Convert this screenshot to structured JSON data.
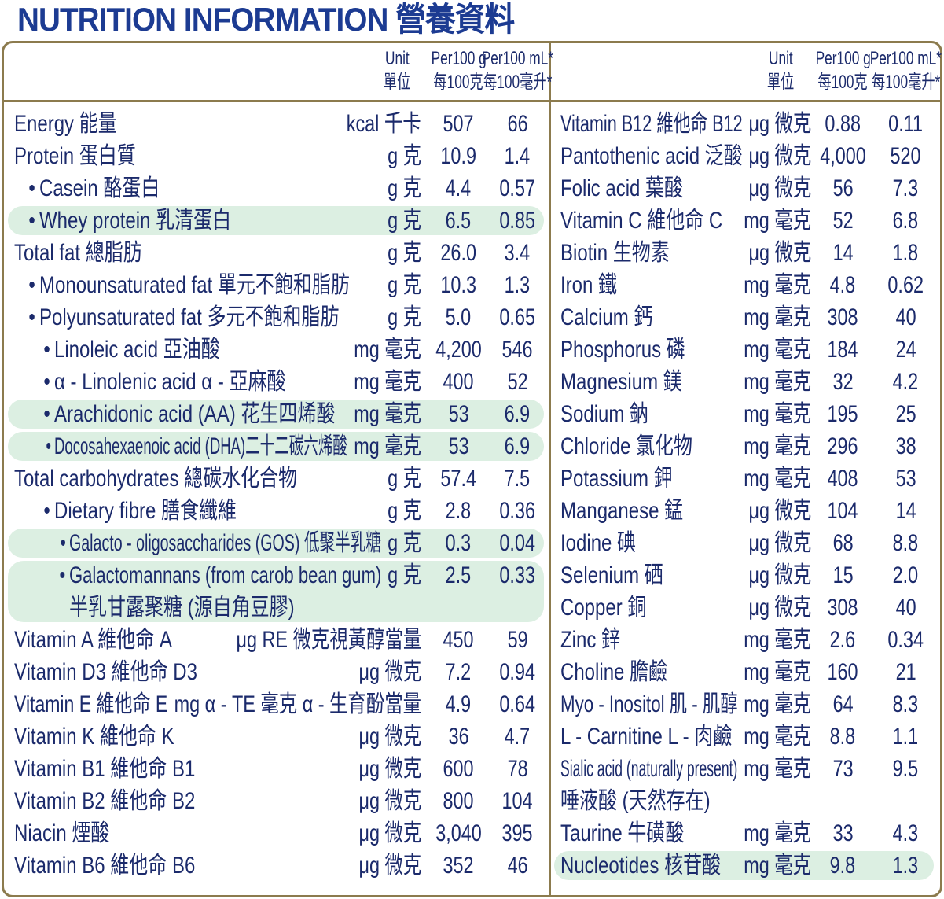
{
  "title": "NUTRITION INFORMATION 營養資料",
  "columns": [
    {
      "header": {
        "unit": [
          "Unit",
          "單位"
        ],
        "per100g": [
          "Per100 g",
          "每100克"
        ],
        "per100ml": [
          "Per100 mL*",
          "每100毫升*"
        ]
      },
      "rows": [
        {
          "name": [
            "Energy 能量"
          ],
          "unit": "kcal 千卡",
          "per100g": "507",
          "per100ml": "66"
        },
        {
          "name": [
            "Protein 蛋白質"
          ],
          "unit": "g 克",
          "per100g": "10.9",
          "per100ml": "1.4"
        },
        {
          "name": [
            "Casein 酪蛋白"
          ],
          "unit": "g 克",
          "per100g": "4.4",
          "per100ml": "0.57",
          "level": 1
        },
        {
          "name": [
            "Whey protein 乳清蛋白"
          ],
          "unit": "g 克",
          "per100g": "6.5",
          "per100ml": "0.85",
          "level": 1,
          "highlight": true
        },
        {
          "name": [
            "Total fat 總脂肪"
          ],
          "unit": "g 克",
          "per100g": "26.0",
          "per100ml": "3.4"
        },
        {
          "name": [
            "Monounsaturated fat 單元不飽和脂肪"
          ],
          "unit": "g 克",
          "per100g": "10.3",
          "per100ml": "1.3",
          "level": 1
        },
        {
          "name": [
            "Polyunsaturated fat 多元不飽和脂肪"
          ],
          "unit": "g 克",
          "per100g": "5.0",
          "per100ml": "0.65",
          "level": 1
        },
        {
          "name": [
            "Linoleic acid 亞油酸"
          ],
          "unit": "mg 毫克",
          "per100g": "4,200",
          "per100ml": "546",
          "level": 2
        },
        {
          "name": [
            "α - Linolenic acid α - 亞麻酸"
          ],
          "unit": "mg 毫克",
          "per100g": "400",
          "per100ml": "52",
          "level": 2
        },
        {
          "name": [
            "Arachidonic acid (AA) 花生四烯酸"
          ],
          "unit": "mg 毫克",
          "per100g": "53",
          "per100ml": "6.9",
          "level": 2,
          "highlight": true
        },
        {
          "name": [
            "Docosahexaenoic acid (DHA)二十二碳六烯酸"
          ],
          "unit": "mg 毫克",
          "per100g": "53",
          "per100ml": "6.9",
          "level": 2,
          "highlight": true
        },
        {
          "name": [
            "Total carbohydrates 總碳水化合物"
          ],
          "unit": "g 克",
          "per100g": "57.4",
          "per100ml": "7.5"
        },
        {
          "name": [
            "Dietary fibre 膳食纖維"
          ],
          "unit": "g 克",
          "per100g": "2.8",
          "per100ml": "0.36",
          "level": 2
        },
        {
          "name": [
            "Galacto - oligosaccharides (GOS) 低聚半乳糖"
          ],
          "unit": "g 克",
          "per100g": "0.3",
          "per100ml": "0.04",
          "level": 3,
          "highlight": true
        },
        {
          "name": [
            "Galactomannans (from carob bean gum)",
            "半乳甘露聚糖 (源自角豆膠)"
          ],
          "unit": "g 克",
          "per100g": "2.5",
          "per100ml": "0.33",
          "level": 3,
          "highlight": true
        },
        {
          "name": [
            "Vitamin A 維他命 A"
          ],
          "unit": "μg RE 微克視黃醇當量",
          "per100g": "450",
          "per100ml": "59"
        },
        {
          "name": [
            "Vitamin D3 維他命 D3"
          ],
          "unit": "μg 微克",
          "per100g": "7.2",
          "per100ml": "0.94"
        },
        {
          "name": [
            "Vitamin E 維他命 E"
          ],
          "unit": "mg α - TE 毫克 α - 生育酚當量",
          "per100g": "4.9",
          "per100ml": "0.64"
        },
        {
          "name": [
            "Vitamin K 維他命 K"
          ],
          "unit": "μg 微克",
          "per100g": "36",
          "per100ml": "4.7"
        },
        {
          "name": [
            "Vitamin B1 維他命 B1"
          ],
          "unit": "μg 微克",
          "per100g": "600",
          "per100ml": "78"
        },
        {
          "name": [
            "Vitamin B2 維他命 B2"
          ],
          "unit": "μg 微克",
          "per100g": "800",
          "per100ml": "104"
        },
        {
          "name": [
            "Niacin 煙酸"
          ],
          "unit": "μg 微克",
          "per100g": "3,040",
          "per100ml": "395"
        },
        {
          "name": [
            "Vitamin B6 維他命 B6"
          ],
          "unit": "μg 微克",
          "per100g": "352",
          "per100ml": "46"
        }
      ]
    },
    {
      "header": {
        "unit": [
          "Unit",
          "單位"
        ],
        "per100g": [
          "Per100 g",
          "每100克"
        ],
        "per100ml": [
          "Per100 mL*",
          "每100毫升*"
        ]
      },
      "rows": [
        {
          "name": [
            "Vitamin B12 維他命 B12"
          ],
          "unit": "μg 微克",
          "per100g": "0.88",
          "per100ml": "0.11"
        },
        {
          "name": [
            "Pantothenic acid 泛酸"
          ],
          "unit": "μg 微克",
          "per100g": "4,000",
          "per100ml": "520"
        },
        {
          "name": [
            "Folic acid 葉酸"
          ],
          "unit": "μg 微克",
          "per100g": "56",
          "per100ml": "7.3"
        },
        {
          "name": [
            "Vitamin C 維他命 C"
          ],
          "unit": "mg 毫克",
          "per100g": "52",
          "per100ml": "6.8"
        },
        {
          "name": [
            "Biotin 生物素"
          ],
          "unit": "μg 微克",
          "per100g": "14",
          "per100ml": "1.8"
        },
        {
          "name": [
            "Iron 鐵"
          ],
          "unit": "mg 毫克",
          "per100g": "4.8",
          "per100ml": "0.62"
        },
        {
          "name": [
            "Calcium 鈣"
          ],
          "unit": "mg 毫克",
          "per100g": "308",
          "per100ml": "40"
        },
        {
          "name": [
            "Phosphorus 磷"
          ],
          "unit": "mg 毫克",
          "per100g": "184",
          "per100ml": "24"
        },
        {
          "name": [
            "Magnesium 鎂"
          ],
          "unit": "mg 毫克",
          "per100g": "32",
          "per100ml": "4.2"
        },
        {
          "name": [
            "Sodium 鈉"
          ],
          "unit": "mg 毫克",
          "per100g": "195",
          "per100ml": "25"
        },
        {
          "name": [
            "Chloride 氯化物"
          ],
          "unit": "mg 毫克",
          "per100g": "296",
          "per100ml": "38"
        },
        {
          "name": [
            "Potassium 鉀"
          ],
          "unit": "mg 毫克",
          "per100g": "408",
          "per100ml": "53"
        },
        {
          "name": [
            "Manganese 錳"
          ],
          "unit": "μg 微克",
          "per100g": "104",
          "per100ml": "14"
        },
        {
          "name": [
            "Iodine 碘"
          ],
          "unit": "μg 微克",
          "per100g": "68",
          "per100ml": "8.8"
        },
        {
          "name": [
            "Selenium 硒"
          ],
          "unit": "μg 微克",
          "per100g": "15",
          "per100ml": "2.0"
        },
        {
          "name": [
            "Copper 銅"
          ],
          "unit": "μg 微克",
          "per100g": "308",
          "per100ml": "40"
        },
        {
          "name": [
            "Zinc 鋅"
          ],
          "unit": "mg 毫克",
          "per100g": "2.6",
          "per100ml": "0.34"
        },
        {
          "name": [
            "Choline 膽鹼"
          ],
          "unit": "mg 毫克",
          "per100g": "160",
          "per100ml": "21"
        },
        {
          "name": [
            "Myo - Inositol 肌 - 肌醇"
          ],
          "unit": "mg 毫克",
          "per100g": "64",
          "per100ml": "8.3"
        },
        {
          "name": [
            "L - Carnitine L - 肉鹼"
          ],
          "unit": "mg 毫克",
          "per100g": "8.8",
          "per100ml": "1.1"
        },
        {
          "name": [
            "Sialic acid (naturally present)",
            "唾液酸 (天然存在)"
          ],
          "unit": "mg 毫克",
          "per100g": "73",
          "per100ml": "9.5"
        },
        {
          "name": [
            "Taurine 牛磺酸"
          ],
          "unit": "mg 毫克",
          "per100g": "33",
          "per100ml": "4.3"
        },
        {
          "name": [
            "Nucleotides 核苷酸"
          ],
          "unit": "mg 毫克",
          "per100g": "9.8",
          "per100ml": "1.3",
          "highlight": true
        }
      ]
    }
  ]
}
